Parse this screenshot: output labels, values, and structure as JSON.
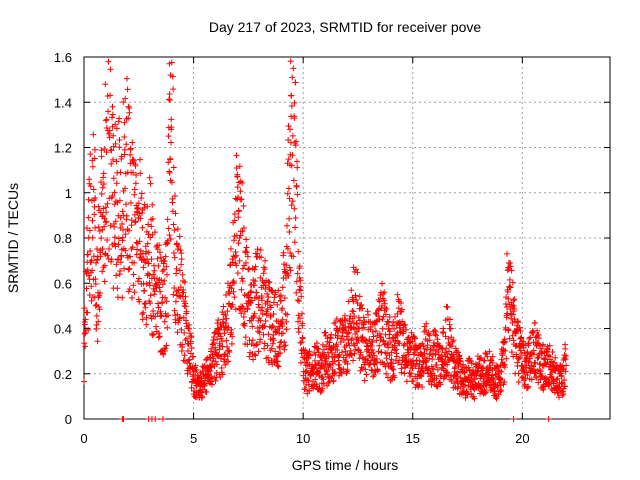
{
  "chart_data": {
    "type": "scatter",
    "title": "Day 217 of 2023, SRMTID for receiver pove",
    "xlabel": "GPS time / hours",
    "ylabel": "SRMTID / TECUs",
    "xlim": [
      0,
      24
    ],
    "ylim": [
      0,
      1.6
    ],
    "xticks": [
      0,
      5,
      10,
      15,
      20
    ],
    "yticks": [
      0,
      0.2,
      0.4,
      0.6,
      0.8,
      1,
      1.2,
      1.4,
      1.6
    ],
    "ytick_labels": [
      "0",
      "0.2",
      "0.4",
      "0.6",
      "0.8",
      "1",
      "1.2",
      "1.4",
      "1.6"
    ],
    "grid": true,
    "marker": "+",
    "color": "#ff0000",
    "series": [
      {
        "name": "SRMTID",
        "anchors": [
          [
            0.0,
            0.3
          ],
          [
            0.1,
            0.55
          ],
          [
            0.2,
            0.7
          ],
          [
            0.3,
            0.85
          ],
          [
            0.4,
            0.9
          ],
          [
            0.5,
            0.8
          ],
          [
            0.6,
            0.6
          ],
          [
            0.7,
            0.7
          ],
          [
            0.8,
            0.9
          ],
          [
            0.9,
            1.0
          ],
          [
            1.0,
            1.05
          ],
          [
            1.1,
            1.2
          ],
          [
            1.2,
            1.3
          ],
          [
            1.3,
            1.1
          ],
          [
            1.4,
            0.95
          ],
          [
            1.5,
            1.0
          ],
          [
            1.7,
            0.9
          ],
          [
            1.9,
            1.1
          ],
          [
            2.0,
            1.05
          ],
          [
            2.2,
            0.9
          ],
          [
            2.4,
            0.85
          ],
          [
            2.6,
            0.8
          ],
          [
            2.8,
            0.7
          ],
          [
            3.0,
            0.75
          ],
          [
            3.2,
            0.6
          ],
          [
            3.4,
            0.55
          ],
          [
            3.6,
            0.5
          ],
          [
            3.8,
            0.55
          ],
          [
            3.9,
            1.2
          ],
          [
            4.0,
            1.5
          ],
          [
            4.1,
            0.8
          ],
          [
            4.3,
            0.6
          ],
          [
            4.5,
            0.5
          ],
          [
            4.7,
            0.35
          ],
          [
            4.9,
            0.25
          ],
          [
            5.0,
            0.18
          ],
          [
            5.2,
            0.15
          ],
          [
            5.4,
            0.16
          ],
          [
            5.6,
            0.2
          ],
          [
            5.8,
            0.22
          ],
          [
            6.0,
            0.28
          ],
          [
            6.2,
            0.32
          ],
          [
            6.4,
            0.35
          ],
          [
            6.6,
            0.45
          ],
          [
            6.8,
            0.6
          ],
          [
            7.0,
            0.9
          ],
          [
            7.2,
            0.75
          ],
          [
            7.4,
            0.55
          ],
          [
            7.6,
            0.45
          ],
          [
            7.8,
            0.5
          ],
          [
            8.0,
            0.55
          ],
          [
            8.2,
            0.5
          ],
          [
            8.4,
            0.45
          ],
          [
            8.6,
            0.4
          ],
          [
            8.8,
            0.38
          ],
          [
            9.0,
            0.42
          ],
          [
            9.2,
            0.6
          ],
          [
            9.4,
            1.1
          ],
          [
            9.5,
            1.4
          ],
          [
            9.6,
            1.2
          ],
          [
            9.7,
            0.9
          ],
          [
            9.8,
            0.6
          ],
          [
            10.0,
            0.25
          ],
          [
            10.2,
            0.2
          ],
          [
            10.4,
            0.22
          ],
          [
            10.6,
            0.25
          ],
          [
            10.8,
            0.2
          ],
          [
            11.0,
            0.28
          ],
          [
            11.2,
            0.25
          ],
          [
            11.4,
            0.3
          ],
          [
            11.6,
            0.32
          ],
          [
            11.8,
            0.3
          ],
          [
            12.0,
            0.35
          ],
          [
            12.2,
            0.4
          ],
          [
            12.4,
            0.5
          ],
          [
            12.6,
            0.38
          ],
          [
            12.8,
            0.3
          ],
          [
            13.0,
            0.35
          ],
          [
            13.2,
            0.32
          ],
          [
            13.4,
            0.38
          ],
          [
            13.6,
            0.42
          ],
          [
            13.8,
            0.35
          ],
          [
            14.0,
            0.3
          ],
          [
            14.2,
            0.33
          ],
          [
            14.4,
            0.38
          ],
          [
            14.6,
            0.3
          ],
          [
            14.8,
            0.25
          ],
          [
            15.0,
            0.28
          ],
          [
            15.2,
            0.22
          ],
          [
            15.4,
            0.25
          ],
          [
            15.6,
            0.3
          ],
          [
            15.8,
            0.26
          ],
          [
            16.0,
            0.28
          ],
          [
            16.2,
            0.24
          ],
          [
            16.4,
            0.3
          ],
          [
            16.6,
            0.36
          ],
          [
            16.8,
            0.25
          ],
          [
            17.0,
            0.22
          ],
          [
            17.2,
            0.18
          ],
          [
            17.4,
            0.16
          ],
          [
            17.6,
            0.2
          ],
          [
            17.8,
            0.15
          ],
          [
            18.0,
            0.2
          ],
          [
            18.2,
            0.18
          ],
          [
            18.4,
            0.22
          ],
          [
            18.6,
            0.2
          ],
          [
            18.8,
            0.16
          ],
          [
            19.0,
            0.18
          ],
          [
            19.2,
            0.3
          ],
          [
            19.4,
            0.55
          ],
          [
            19.6,
            0.4
          ],
          [
            19.8,
            0.3
          ],
          [
            20.0,
            0.25
          ],
          [
            20.2,
            0.22
          ],
          [
            20.4,
            0.28
          ],
          [
            20.6,
            0.3
          ],
          [
            20.8,
            0.25
          ],
          [
            21.0,
            0.22
          ],
          [
            21.2,
            0.24
          ],
          [
            21.4,
            0.2
          ],
          [
            21.6,
            0.18
          ],
          [
            21.8,
            0.16
          ],
          [
            22.0,
            0.25
          ]
        ],
        "spikes": [
          [
            1.3,
            1.38
          ],
          [
            1.0,
            1.32
          ],
          [
            0.5,
            1.19
          ],
          [
            3.9,
            1.57
          ],
          [
            3.95,
            1.52
          ],
          [
            3.92,
            1.41
          ],
          [
            3.98,
            1.28
          ],
          [
            3.93,
            1.15
          ],
          [
            9.55,
            1.55
          ],
          [
            9.5,
            1.51
          ],
          [
            9.45,
            1.43
          ],
          [
            9.6,
            1.33
          ],
          [
            9.4,
            1.28
          ],
          [
            9.62,
            1.22
          ],
          [
            9.48,
            1.12
          ],
          [
            7.0,
            1.07
          ],
          [
            7.15,
            1.05
          ],
          [
            19.3,
            0.73
          ],
          [
            19.35,
            0.67
          ],
          [
            19.6,
            0.5
          ],
          [
            12.3,
            0.67
          ],
          [
            13.7,
            0.56
          ],
          [
            14.3,
            0.55
          ],
          [
            16.7,
            0.44
          ]
        ],
        "zeros": [
          1.75,
          1.8,
          2.95,
          3.1,
          3.25,
          3.6,
          19.6,
          21.2
        ]
      }
    ]
  }
}
